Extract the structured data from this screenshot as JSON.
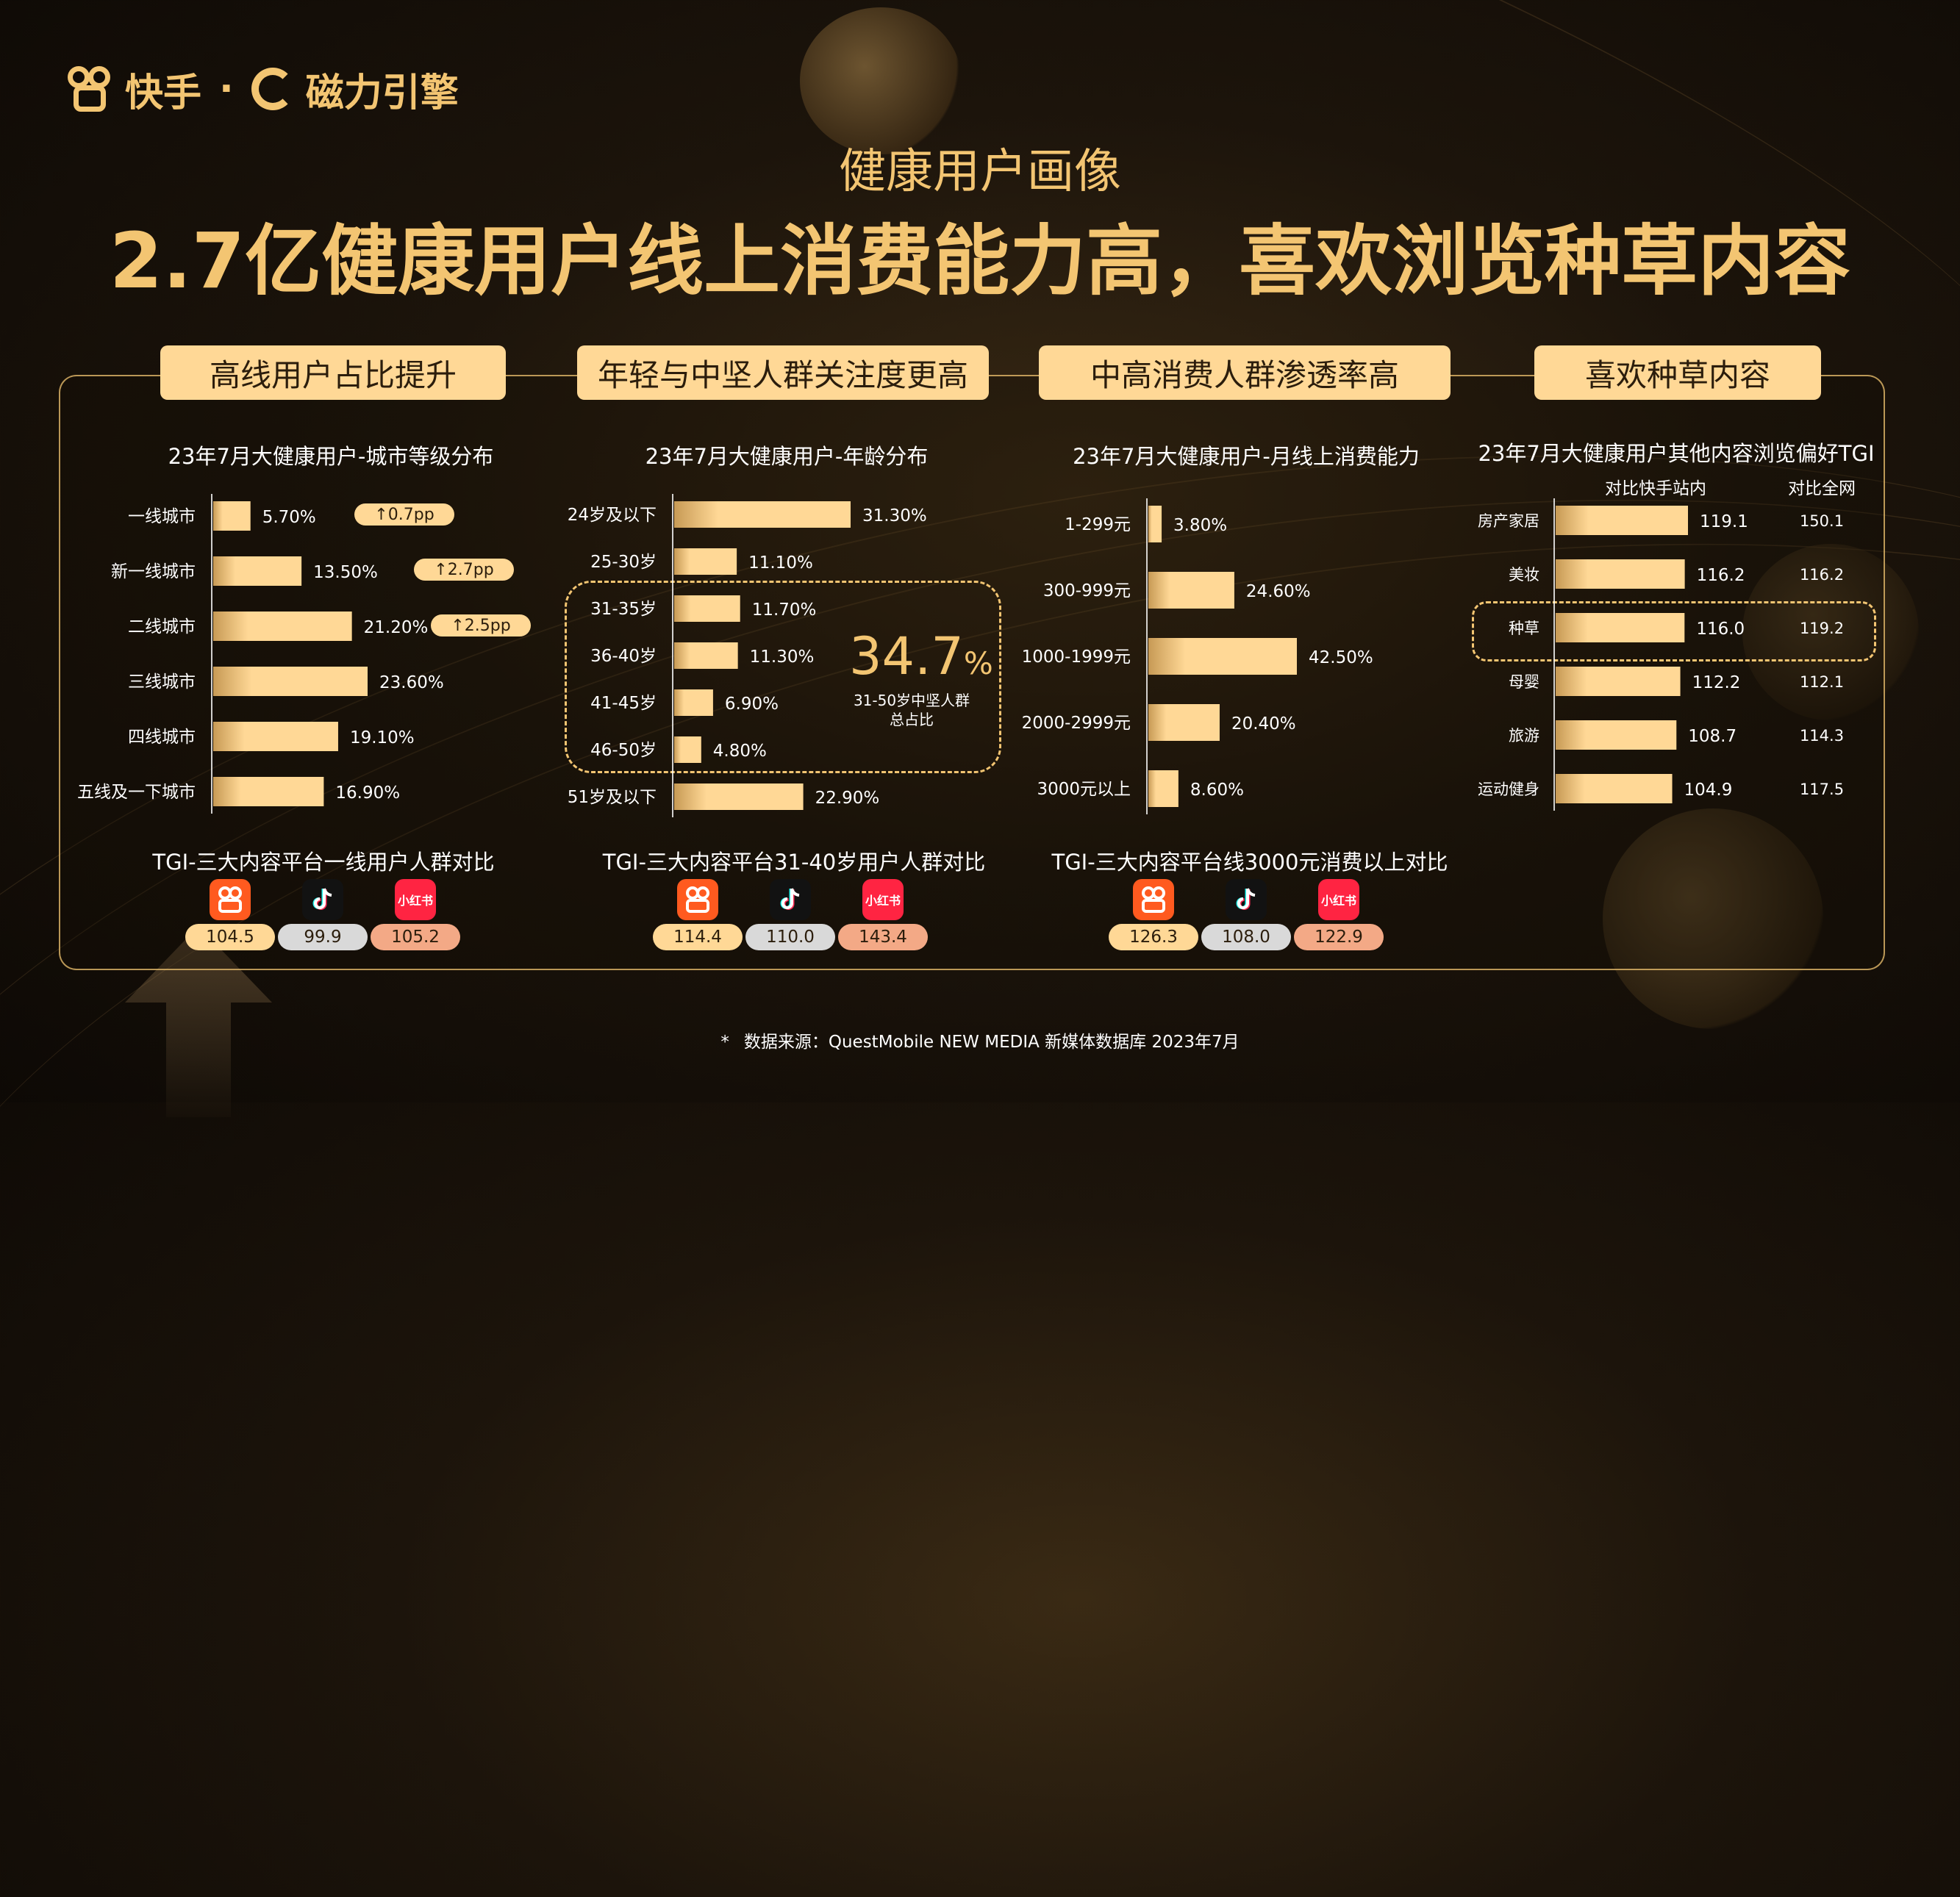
{
  "brand": {
    "kuaishou": "快手",
    "sep": "·",
    "engine": "磁力引擎"
  },
  "colors": {
    "accent": "#f3c572",
    "bar": "#ffd896",
    "kuaishou": "#ff5a1f",
    "douyin": "#121212",
    "xiaohongshu": "#ff2442"
  },
  "header": {
    "subtitle": "健康用户画像",
    "title": "2.7亿健康用户线上消费能力高，喜欢浏览种草内容"
  },
  "sections": [
    {
      "pill": "高线用户占比提升",
      "chart_title": "23年7月大健康用户-城市等级分布"
    },
    {
      "pill": "年轻与中坚人群关注度更高",
      "chart_title": "23年7月大健康用户-年龄分布"
    },
    {
      "pill": "中高消费人群渗透率高",
      "chart_title": "23年7月大健康用户-月线上消费能力"
    },
    {
      "pill": "喜欢种草内容",
      "chart_title": "23年7月大健康用户其他内容浏览偏好TGI"
    }
  ],
  "chart_data": [
    {
      "type": "bar",
      "orientation": "horizontal",
      "title": "23年7月大健康用户-城市等级分布",
      "categories": [
        "一线城市",
        "新一线城市",
        "二线城市",
        "三线城市",
        "四线城市",
        "五线及一下城市"
      ],
      "values": [
        5.7,
        13.5,
        21.2,
        23.6,
        19.1,
        16.9
      ],
      "labels": [
        "5.70%",
        "13.50%",
        "21.20%",
        "23.60%",
        "19.10%",
        "16.90%"
      ],
      "unit": "%",
      "annotations": [
        {
          "category": "一线城市",
          "text": "↑0.7pp"
        },
        {
          "category": "新一线城市",
          "text": "↑2.7pp"
        },
        {
          "category": "二线城市",
          "text": "↑2.5pp"
        }
      ]
    },
    {
      "type": "bar",
      "orientation": "horizontal",
      "title": "23年7月大健康用户-年龄分布",
      "categories": [
        "24岁及以下",
        "25-30岁",
        "31-35岁",
        "36-40岁",
        "41-45岁",
        "46-50岁",
        "51岁及以下"
      ],
      "values": [
        31.3,
        11.1,
        11.7,
        11.3,
        6.9,
        4.8,
        22.9
      ],
      "labels": [
        "31.30%",
        "11.10%",
        "11.70%",
        "11.30%",
        "6.90%",
        "4.80%",
        "22.90%"
      ],
      "unit": "%",
      "highlight": {
        "value": "34.7",
        "unit": "%",
        "note_line1": "31-50岁中坚人群",
        "note_line2": "总占比"
      }
    },
    {
      "type": "bar",
      "orientation": "horizontal",
      "title": "23年7月大健康用户-月线上消费能力",
      "categories": [
        "1-299元",
        "300-999元",
        "1000-1999元",
        "2000-2999元",
        "3000元以上"
      ],
      "values": [
        3.8,
        24.6,
        42.5,
        20.4,
        8.6
      ],
      "labels": [
        "3.80%",
        "24.60%",
        "42.50%",
        "20.40%",
        "8.60%"
      ],
      "unit": "%"
    },
    {
      "type": "bar",
      "orientation": "horizontal",
      "title": "23年7月大健康用户其他内容浏览偏好TGI",
      "categories": [
        "房产家居",
        "美妆",
        "种草",
        "母婴",
        "旅游",
        "运动健身"
      ],
      "series": [
        {
          "name": "对比快手站内",
          "values": [
            119.1,
            116.2,
            116.0,
            112.2,
            108.7,
            104.9
          ],
          "labels": [
            "119.1",
            "116.2",
            "116.0",
            "112.2",
            "108.7",
            "104.9"
          ]
        },
        {
          "name": "对比全网",
          "values": [
            150.1,
            116.2,
            119.2,
            112.1,
            114.3,
            117.5
          ],
          "labels": [
            "150.1",
            "116.2",
            "119.2",
            "112.1",
            "114.3",
            "117.5"
          ]
        }
      ],
      "highlight_category": "种草"
    }
  ],
  "tgi_compare": [
    {
      "title": "TGI-三大内容平台一线用户人群对比",
      "values": [
        "104.5",
        "99.9",
        "105.2"
      ]
    },
    {
      "title": "TGI-三大内容平台31-40岁用户人群对比",
      "values": [
        "114.4",
        "110.0",
        "143.4"
      ]
    },
    {
      "title": "TGI-三大内容平台线3000元消费以上对比",
      "values": [
        "126.3",
        "108.0",
        "122.9"
      ]
    }
  ],
  "platform_icons": [
    "kuaishou-icon",
    "douyin-icon",
    "xiaohongshu-icon"
  ],
  "xiaohongshu_label": "小红书",
  "footer": {
    "bullet": "*",
    "source": "数据来源：QuestMobile NEW MEDIA 新媒体数据库 2023年7月"
  }
}
